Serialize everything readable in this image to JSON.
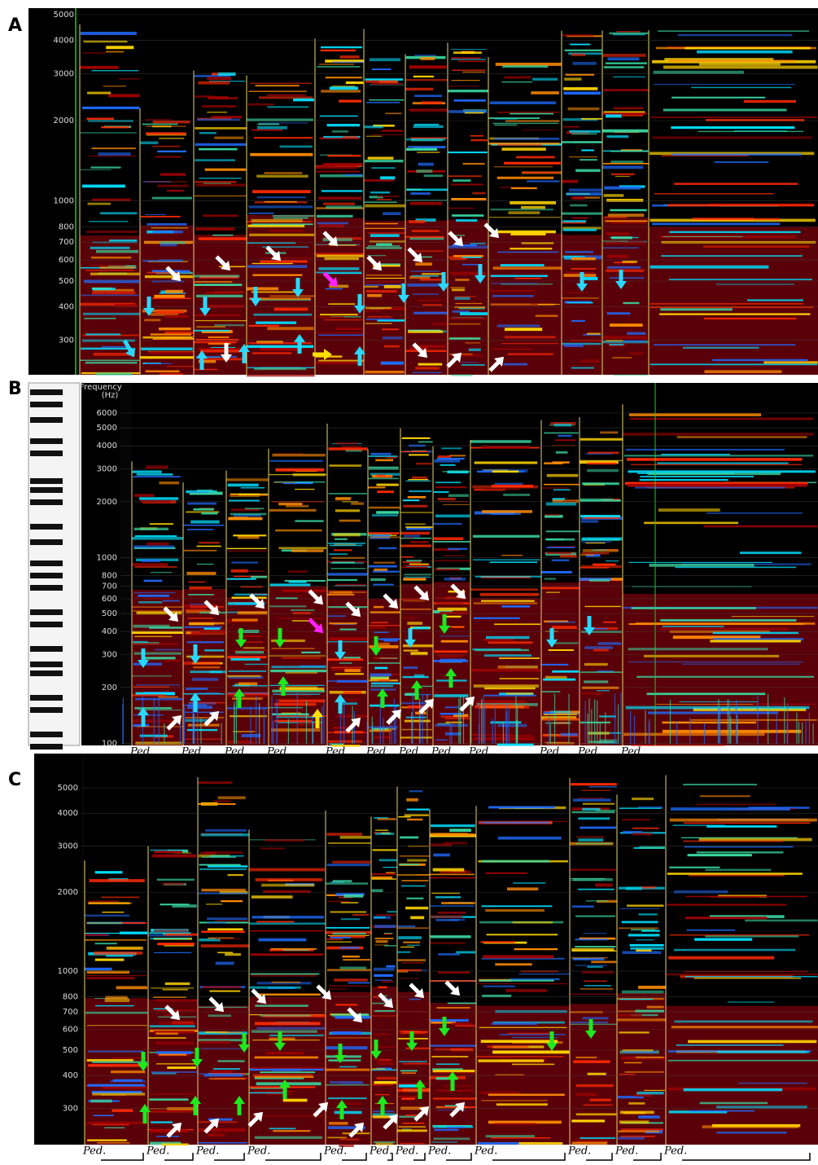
{
  "panels": [
    {
      "label": "A",
      "ticks": [
        5000,
        4000,
        3000,
        2000,
        1000,
        800,
        700,
        600,
        500,
        400,
        300
      ]
    },
    {
      "label": "B",
      "axis_title": [
        "Frequency",
        "(Hz)"
      ],
      "ticks": [
        6000,
        5000,
        4000,
        3000,
        2000,
        1000,
        800,
        700,
        600,
        500,
        400,
        300,
        200,
        100
      ],
      "pedals": [
        "Ped.",
        "Ped.",
        "Ped.",
        "Ped.",
        "Ped.",
        "Ped.",
        "Ped.",
        "Ped.",
        "Ped.",
        "Ped.",
        "Ped.",
        "Ped."
      ]
    },
    {
      "label": "C",
      "ticks": [
        5000,
        4000,
        3000,
        2000,
        1000,
        800,
        700,
        600,
        500,
        400,
        300
      ],
      "pedals": [
        "Ped.",
        "Ped.",
        "Ped.",
        "Ped.",
        "Ped.",
        "Ped.",
        "Ped.",
        "Ped.",
        "Ped.",
        "Ped.",
        "Ped.",
        "Ped."
      ]
    }
  ]
}
